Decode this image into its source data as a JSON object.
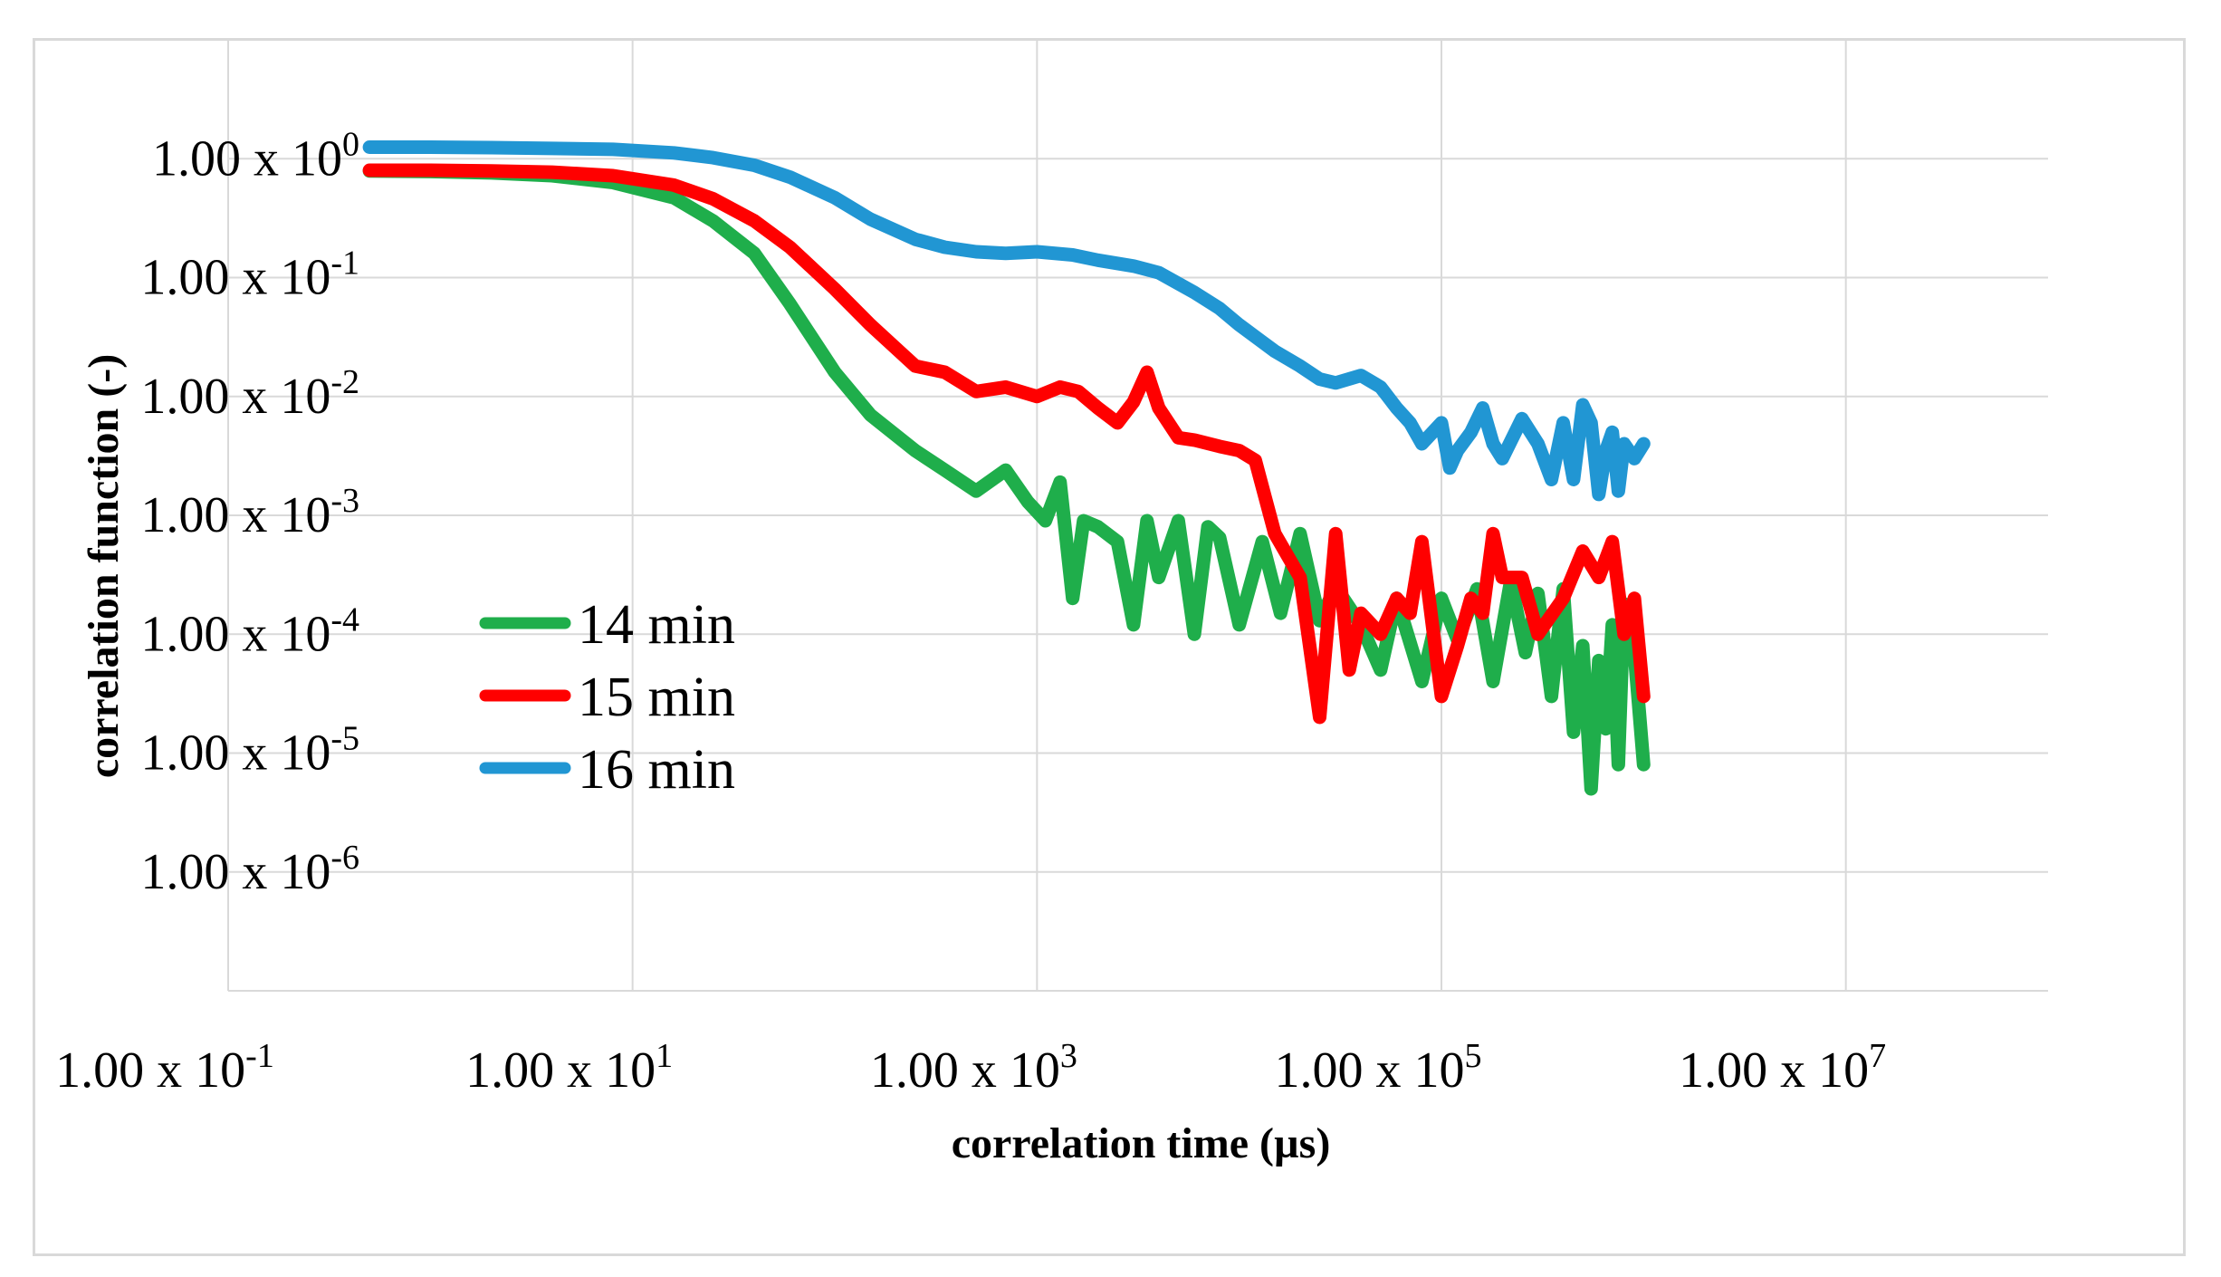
{
  "chart_data": {
    "type": "line",
    "title": "",
    "xlabel": "correlation time (µs)",
    "ylabel": "correlation function (-)",
    "xscale": "log",
    "yscale": "log",
    "xlim": [
      0.1,
      100000000
    ],
    "ylim": [
      1e-07,
      10
    ],
    "grid": true,
    "legend_position": "left-middle",
    "x_ticks": [
      {
        "mantissa": "1.00 x 10",
        "exp": "-1",
        "value": 0.1
      },
      {
        "mantissa": "1.00 x 10",
        "exp": "1",
        "value": 10
      },
      {
        "mantissa": "1.00 x 10",
        "exp": "3",
        "value": 1000
      },
      {
        "mantissa": "1.00 x 10",
        "exp": "5",
        "value": 100000
      },
      {
        "mantissa": "1.00 x 10",
        "exp": "7",
        "value": 10000000
      }
    ],
    "y_ticks": [
      {
        "mantissa": "1.00 x 10",
        "exp": "0",
        "value": 1
      },
      {
        "mantissa": "1.00 x 10",
        "exp": "-1",
        "value": 0.1
      },
      {
        "mantissa": "1.00 x 10",
        "exp": "-2",
        "value": 0.01
      },
      {
        "mantissa": "1.00 x 10",
        "exp": "-3",
        "value": 0.001
      },
      {
        "mantissa": "1.00 x 10",
        "exp": "-4",
        "value": 0.0001
      },
      {
        "mantissa": "1.00 x 10",
        "exp": "-5",
        "value": 1e-05
      },
      {
        "mantissa": "1.00 x 10",
        "exp": "-6",
        "value": 1e-06
      }
    ],
    "series": [
      {
        "name": "14 min",
        "color": "#1fae4b",
        "x": [
          0.5,
          1,
          2,
          4,
          8,
          16,
          25,
          40,
          60,
          100,
          150,
          250,
          350,
          500,
          700,
          900,
          1100,
          1300,
          1500,
          1700,
          2000,
          2500,
          3000,
          3500,
          4000,
          5000,
          6000,
          7000,
          8000,
          10000,
          13000,
          16000,
          20000,
          25000,
          30000,
          40000,
          50000,
          60000,
          80000,
          100000,
          120000,
          150000,
          180000,
          220000,
          260000,
          300000,
          350000,
          400000,
          450000,
          500000,
          550000,
          600000,
          650000,
          700000,
          750000,
          800000,
          900000,
          1000000
        ],
        "y": [
          0.79,
          0.78,
          0.76,
          0.72,
          0.63,
          0.47,
          0.3,
          0.16,
          0.06,
          0.016,
          0.007,
          0.0035,
          0.0024,
          0.0016,
          0.0024,
          0.0013,
          0.0009,
          0.0019,
          0.0002,
          0.0009,
          0.0008,
          0.0006,
          0.00012,
          0.0009,
          0.0003,
          0.0009,
          0.0001,
          0.0008,
          0.00065,
          0.00012,
          0.0006,
          0.00015,
          0.0007,
          0.00013,
          0.00025,
          0.00012,
          5e-05,
          0.0002,
          4e-05,
          0.0002,
          9e-05,
          0.00024,
          4e-05,
          0.00028,
          7e-05,
          0.00022,
          3e-05,
          0.00024,
          1.5e-05,
          8e-05,
          5e-06,
          6e-05,
          1.6e-05,
          0.00012,
          8e-06,
          0.00018,
          7e-05,
          8e-06
        ]
      },
      {
        "name": "15 min",
        "color": "#ff0000",
        "x": [
          0.5,
          1,
          2,
          4,
          8,
          16,
          25,
          40,
          60,
          100,
          150,
          250,
          350,
          500,
          700,
          1000,
          1300,
          1600,
          2000,
          2500,
          3000,
          3500,
          4000,
          5000,
          6000,
          8000,
          10000,
          12000,
          15000,
          20000,
          25000,
          30000,
          35000,
          40000,
          50000,
          60000,
          70000,
          80000,
          100000,
          120000,
          140000,
          160000,
          180000,
          200000,
          250000,
          300000,
          400000,
          500000,
          600000,
          700000,
          800000,
          900000,
          1000000
        ],
        "y": [
          0.8,
          0.8,
          0.79,
          0.77,
          0.72,
          0.6,
          0.46,
          0.3,
          0.18,
          0.08,
          0.04,
          0.018,
          0.016,
          0.011,
          0.012,
          0.01,
          0.012,
          0.011,
          0.008,
          0.006,
          0.009,
          0.016,
          0.008,
          0.0045,
          0.0043,
          0.0038,
          0.0035,
          0.0029,
          0.0007,
          0.0003,
          2e-05,
          0.0007,
          5e-05,
          0.00015,
          0.0001,
          0.0002,
          0.00015,
          0.0006,
          3e-05,
          8e-05,
          0.0002,
          0.00015,
          0.0007,
          0.0003,
          0.0003,
          0.0001,
          0.0002,
          0.0005,
          0.0003,
          0.0006,
          0.0001,
          0.0002,
          3e-05
        ]
      },
      {
        "name": "16 min",
        "color": "#2196d3",
        "x": [
          0.5,
          1,
          2,
          4,
          8,
          16,
          25,
          40,
          60,
          100,
          150,
          250,
          350,
          500,
          700,
          1000,
          1500,
          2000,
          3000,
          4000,
          6000,
          8000,
          10000,
          15000,
          20000,
          25000,
          30000,
          40000,
          50000,
          60000,
          70000,
          80000,
          100000,
          110000,
          120000,
          140000,
          160000,
          180000,
          200000,
          250000,
          300000,
          350000,
          400000,
          450000,
          500000,
          550000,
          600000,
          650000,
          700000,
          750000,
          800000,
          900000,
          1000000
        ],
        "y": [
          1.25,
          1.25,
          1.24,
          1.22,
          1.2,
          1.12,
          1.02,
          0.88,
          0.7,
          0.47,
          0.31,
          0.21,
          0.18,
          0.165,
          0.16,
          0.165,
          0.155,
          0.14,
          0.125,
          0.11,
          0.075,
          0.055,
          0.04,
          0.024,
          0.018,
          0.014,
          0.013,
          0.015,
          0.012,
          0.008,
          0.006,
          0.004,
          0.006,
          0.0025,
          0.0035,
          0.005,
          0.008,
          0.004,
          0.003,
          0.0065,
          0.004,
          0.002,
          0.006,
          0.002,
          0.0085,
          0.006,
          0.0015,
          0.0035,
          0.005,
          0.0016,
          0.004,
          0.003,
          0.004
        ]
      }
    ]
  }
}
